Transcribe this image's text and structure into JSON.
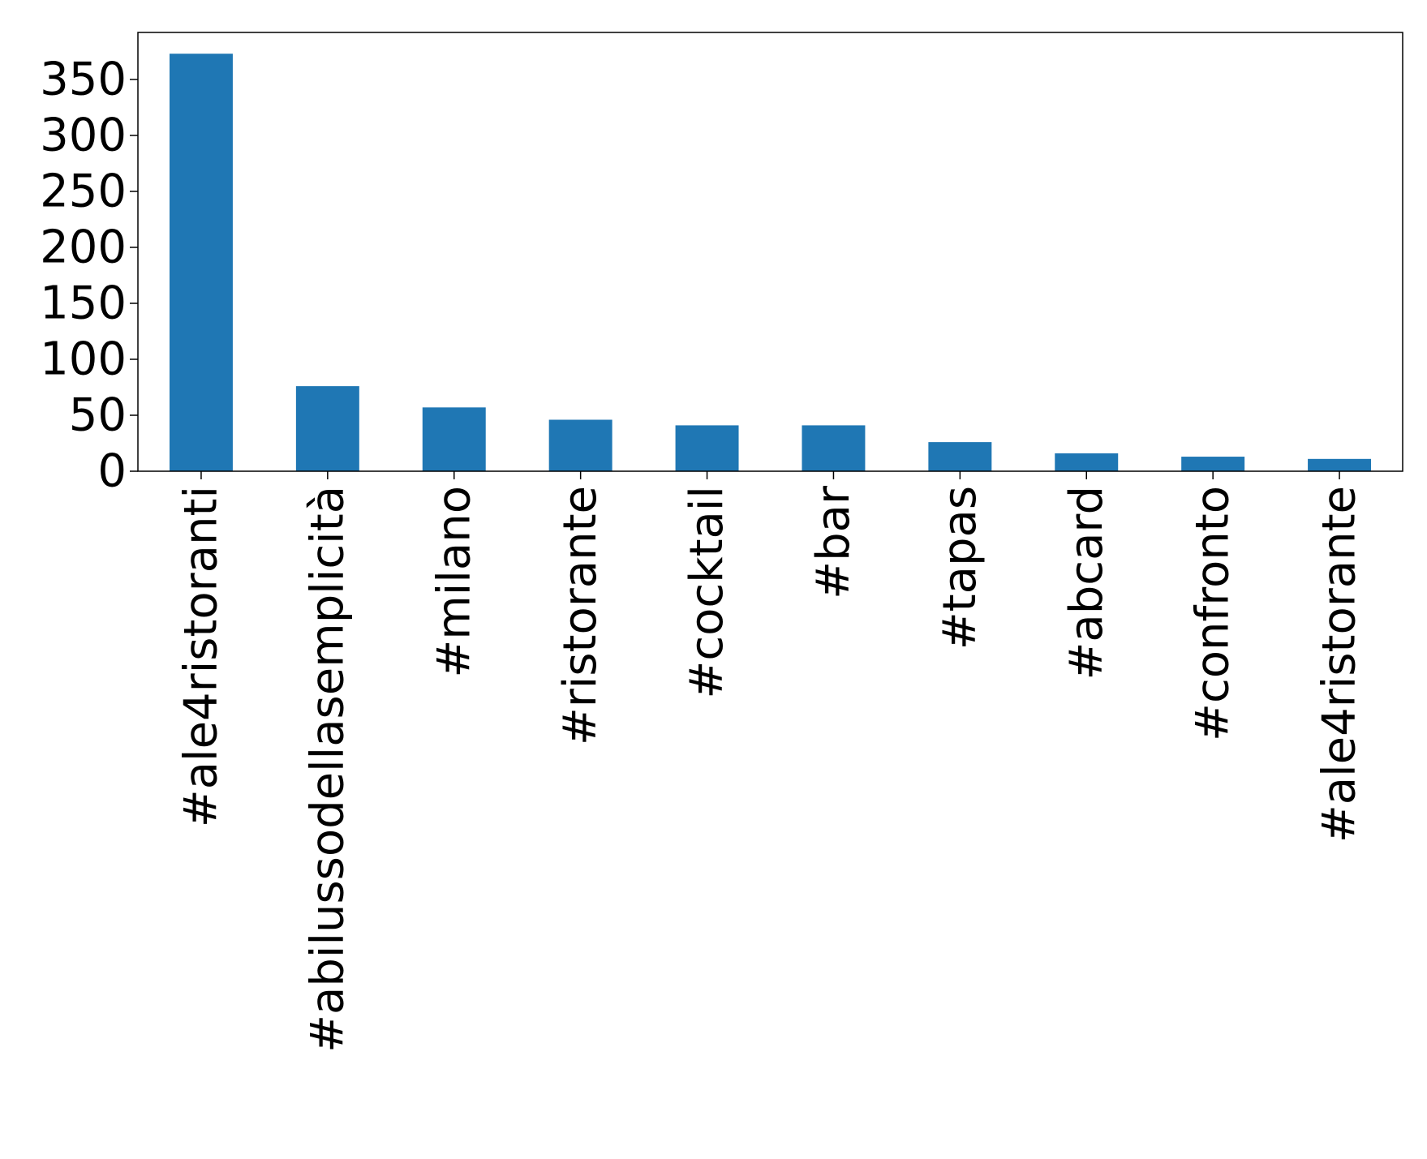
{
  "chart_data": {
    "type": "bar",
    "title": "",
    "xlabel": "",
    "ylabel": "",
    "categories": [
      "#ale4ristoranti",
      "#abilussodellasemplicità",
      "#milano",
      "#ristorante",
      "#cocktail",
      "#bar",
      "#tapas",
      "#abcard",
      "#confronto",
      "#ale4ristorante"
    ],
    "values": [
      373,
      76,
      57,
      46,
      41,
      41,
      26,
      16,
      13,
      11
    ],
    "ylim": [
      0,
      392
    ],
    "yticks": [
      0,
      50,
      100,
      150,
      200,
      250,
      300,
      350
    ],
    "grid": false,
    "legend": "none",
    "colors": {
      "bar": "#1f77b4",
      "axis": "#000000",
      "background": "#ffffff"
    }
  }
}
